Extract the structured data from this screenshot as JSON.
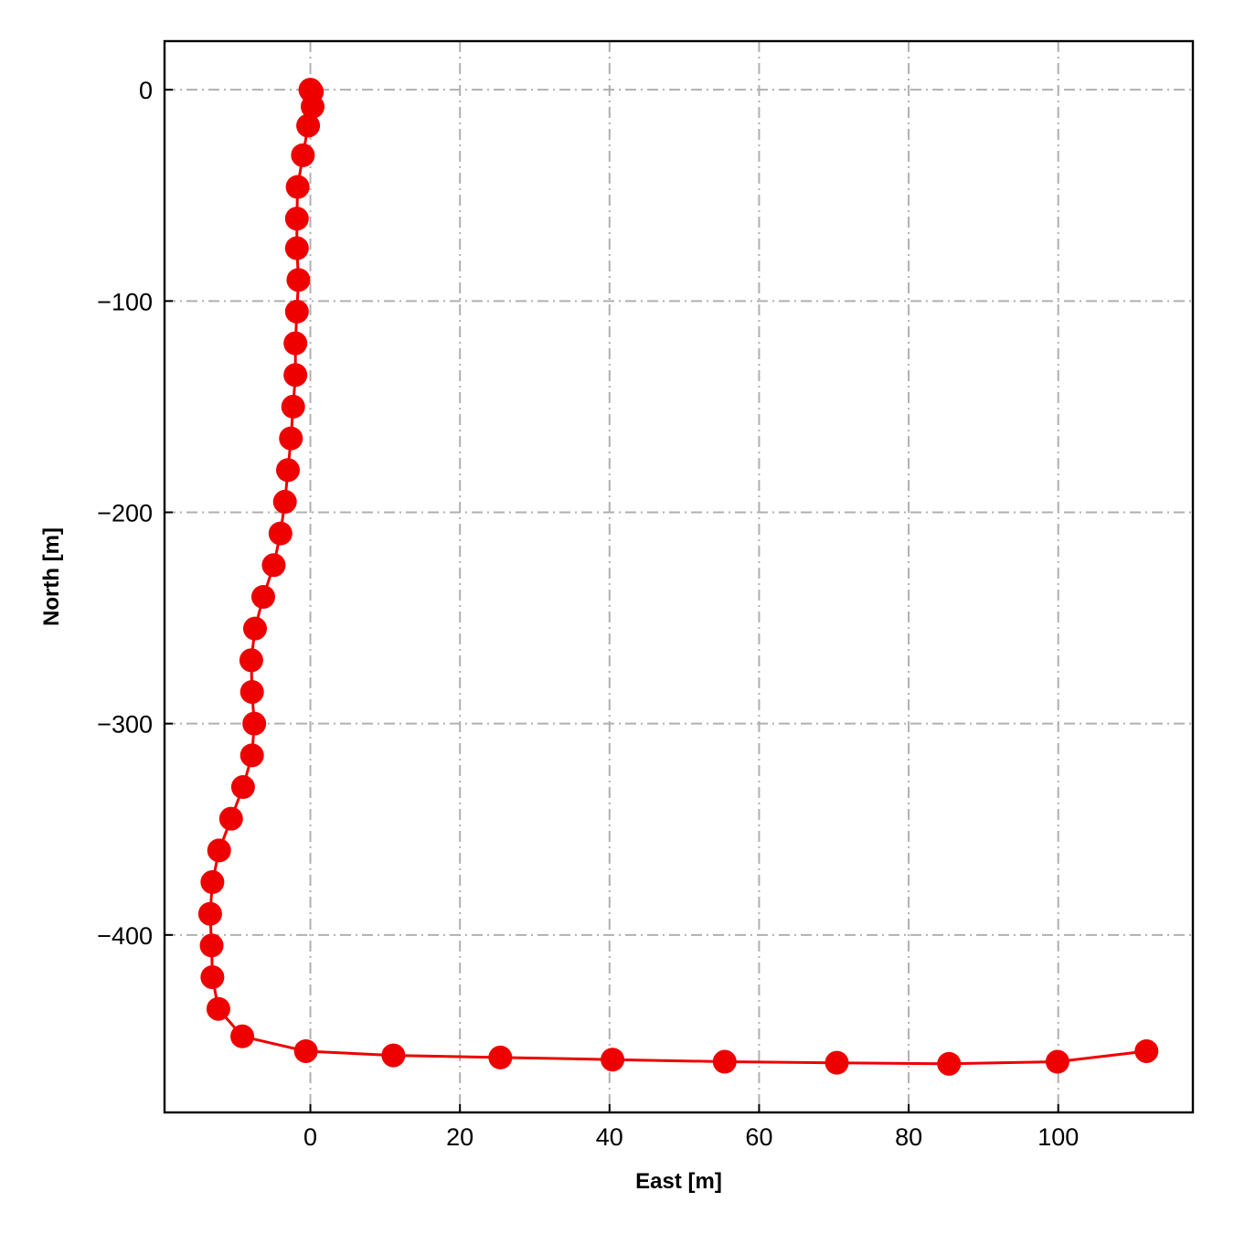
{
  "chart_data": {
    "type": "line",
    "title": "",
    "xlabel": "East [m]",
    "ylabel": "North [m]",
    "xlim": [
      -19.5,
      118
    ],
    "ylim": [
      -484,
      23
    ],
    "xticks": [
      0,
      20,
      40,
      60,
      80,
      100
    ],
    "yticks": [
      0,
      -100,
      -200,
      -300,
      -400
    ],
    "xtick_labels": [
      "0",
      "20",
      "40",
      "60",
      "80",
      "100"
    ],
    "ytick_labels": [
      "0",
      "−100",
      "−200",
      "−300",
      "−400"
    ],
    "grid": true,
    "grid_style": "dash-dot",
    "marker": "circle",
    "colors": {
      "series": "#ee0000",
      "grid": "#b0b0b0",
      "axes": "#000000"
    },
    "series": [
      {
        "x": [
          0,
          0.2,
          0.3,
          -0.3,
          -1.0,
          -1.7,
          -1.8,
          -1.8,
          -1.6,
          -1.8,
          -2.0,
          -2.0,
          -2.3,
          -2.6,
          -3.0,
          -3.4,
          -4.0,
          -4.9,
          -6.3,
          -7.4,
          -7.9,
          -7.8,
          -7.5,
          -7.8,
          -9.0,
          -10.6,
          -12.2,
          -13.1,
          -13.4,
          -13.2,
          -13.1,
          -12.3,
          -9.1,
          -0.6,
          11.1,
          25.4,
          40.4,
          55.4,
          70.4,
          85.4,
          99.9,
          111.8
        ],
        "y": [
          0,
          -1,
          -8,
          -17,
          -31,
          -46,
          -61,
          -75,
          -90,
          -105,
          -120,
          -135,
          -150,
          -165,
          -180,
          -195,
          -210,
          -225,
          -240,
          -255,
          -270,
          -285,
          -300,
          -315,
          -330,
          -345,
          -360,
          -375,
          -390,
          -405,
          -420,
          -435,
          -448,
          -455,
          -457,
          -458,
          -459,
          -460,
          -460.5,
          -461,
          -460,
          -455
        ]
      }
    ]
  }
}
